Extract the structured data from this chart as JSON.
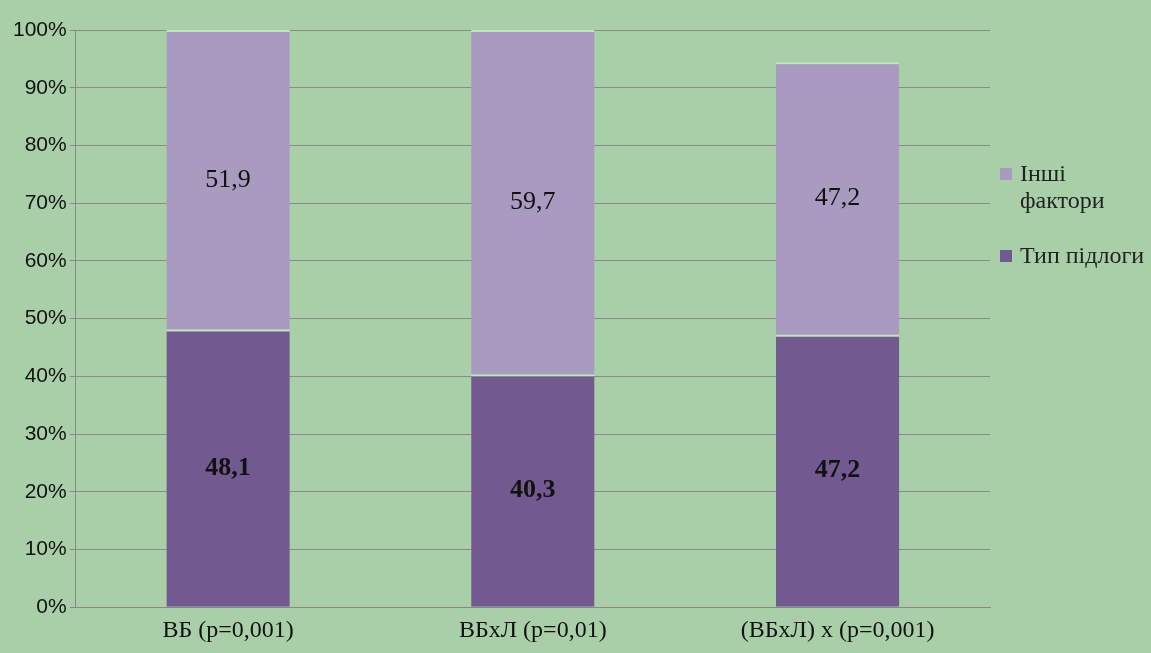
{
  "chart_data": {
    "type": "bar",
    "stacked": true,
    "categories": [
      "ВБ (p=0,001)",
      "ВБхЛ (p=0,01)",
      "(ВБхЛ) х (p=0,001)"
    ],
    "series": [
      {
        "name": "Тип підлоги",
        "color": "#725a91",
        "values": [
          48.1,
          40.3,
          47.2
        ],
        "value_labels": [
          "48,1",
          "40,3",
          "47,2"
        ]
      },
      {
        "name": "Інші фактори",
        "color": "#a99bc0",
        "values": [
          51.9,
          59.7,
          47.2
        ],
        "value_labels": [
          "51,9",
          "59,7",
          "47,2"
        ]
      }
    ],
    "ylim": [
      0,
      100
    ],
    "yticks": [
      {
        "value": 0,
        "label": "0%"
      },
      {
        "value": 10,
        "label": "10%"
      },
      {
        "value": 20,
        "label": "20%"
      },
      {
        "value": 30,
        "label": "30%"
      },
      {
        "value": 40,
        "label": "40%"
      },
      {
        "value": 50,
        "label": "50%"
      },
      {
        "value": 60,
        "label": "60%"
      },
      {
        "value": 70,
        "label": "70%"
      },
      {
        "value": 80,
        "label": "80%"
      },
      {
        "value": 90,
        "label": "90%"
      },
      {
        "value": 100,
        "label": "100%"
      }
    ],
    "grid": "y",
    "legend": "right"
  }
}
